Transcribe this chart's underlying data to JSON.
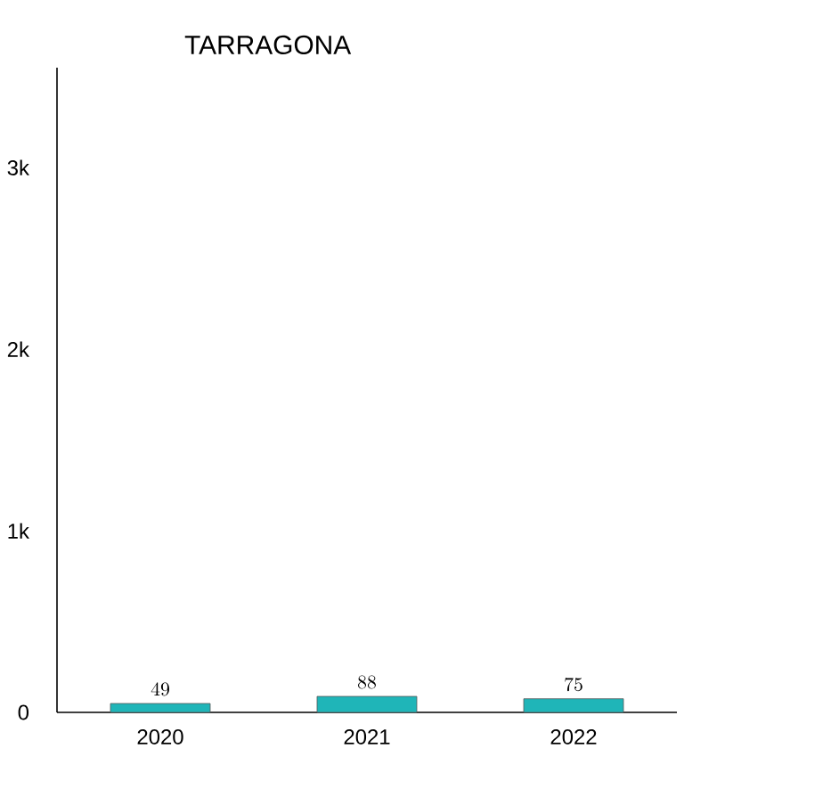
{
  "chart_data": {
    "type": "bar",
    "title": "TARRAGONA",
    "categories": [
      "2020",
      "2021",
      "2022"
    ],
    "values": [
      49,
      88,
      75
    ],
    "color": "#1fb5b8",
    "ylim": [
      0,
      3550
    ],
    "yticks": [
      0,
      {
        "value": 1000,
        "label": "1k"
      },
      {
        "value": 2000,
        "label": "2k"
      },
      {
        "value": 3000,
        "label": "3k"
      }
    ],
    "data_labels": true
  }
}
